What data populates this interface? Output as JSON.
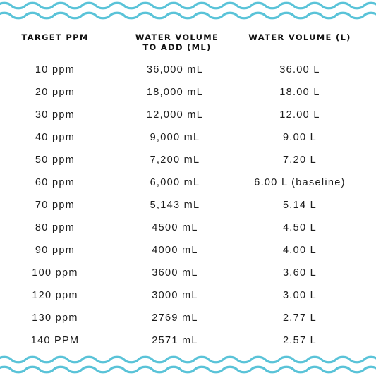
{
  "colors": {
    "wave": "#5ac3d8",
    "text": "#1c1c1c"
  },
  "headers": {
    "target": "TARGET PPM",
    "ml_line1": "WATER VOLUME",
    "ml_line2": "TO ADD (ML)",
    "liters": "WATER VOLUME (L)"
  },
  "rows": [
    {
      "ppm": "10 ppm",
      "ml": "36,000 mL",
      "l": "36.00 L"
    },
    {
      "ppm": "20 ppm",
      "ml": "18,000 mL",
      "l": "18.00 L"
    },
    {
      "ppm": "30 ppm",
      "ml": "12,000 mL",
      "l": "12.00 L"
    },
    {
      "ppm": "40 ppm",
      "ml": "9,000 mL",
      "l": "9.00 L"
    },
    {
      "ppm": "50 ppm",
      "ml": "7,200 mL",
      "l": "7.20 L"
    },
    {
      "ppm": "60 ppm",
      "ml": "6,000 mL",
      "l": "6.00 L (baseline)"
    },
    {
      "ppm": "70 ppm",
      "ml": "5,143 mL",
      "l": "5.14 L"
    },
    {
      "ppm": "80 ppm",
      "ml": "4500 mL",
      "l": "4.50 L"
    },
    {
      "ppm": "90 ppm",
      "ml": "4000 mL",
      "l": "4.00 L"
    },
    {
      "ppm": "100 ppm",
      "ml": "3600 mL",
      "l": "3.60 L"
    },
    {
      "ppm": "120 ppm",
      "ml": "3000 mL",
      "l": "3.00 L"
    },
    {
      "ppm": "130 ppm",
      "ml": "2769 mL",
      "l": "2.77 L"
    },
    {
      "ppm": "140 PPM",
      "ml": "2571 mL",
      "l": "2.57 L"
    }
  ]
}
